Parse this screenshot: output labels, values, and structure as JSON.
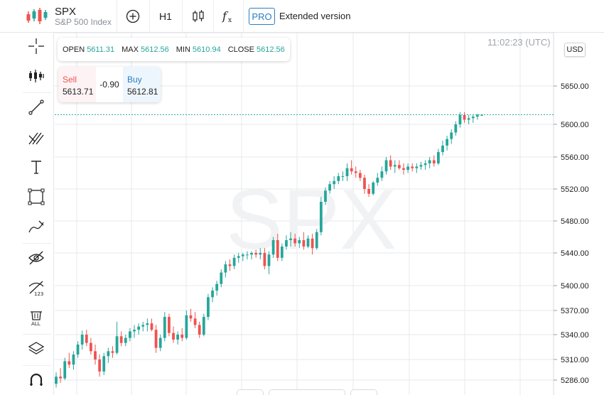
{
  "header": {
    "symbol": "SPX",
    "description": "S&P 500 Index",
    "timeframe": "H1",
    "pro_badge": "PRO",
    "extended_label": "Extended version"
  },
  "ohlc": {
    "open_label": "OPEN",
    "open_value": "5611.31",
    "max_label": "MAX",
    "max_value": "5612.56",
    "min_label": "MIN",
    "min_value": "5610.94",
    "close_label": "CLOSE",
    "close_value": "5612.56"
  },
  "trade": {
    "sell_label": "Sell",
    "sell_price": "5613.71",
    "spread": "-0.90",
    "buy_label": "Buy",
    "buy_price": "5612.81"
  },
  "clock": "11:02:23 (UTC)",
  "currency": "USD",
  "watermark": "SPX",
  "left_tools": [
    "crosshair-icon",
    "indicators-icon",
    "trendline-icon",
    "fib-icon",
    "text-icon",
    "rectangle-icon",
    "brush-icon",
    "hide-drawings-icon",
    "hide-values-icon",
    "delete-all-icon",
    "layers-icon",
    "magnet-icon"
  ],
  "colors": {
    "up": "#26a69a",
    "down": "#ef5350",
    "accent": "#2a7ec4",
    "grid": "#e6e8eb"
  },
  "chart_data": {
    "type": "candlestick",
    "y_tick_labels": [
      "5650.00",
      "5600.00",
      "5560.00",
      "5520.00",
      "5480.00",
      "5440.00",
      "5400.00",
      "5370.00",
      "5340.00",
      "5310.00",
      "5286.00"
    ],
    "grid": true,
    "current_price": 5612.56,
    "candles": [
      [
        5282,
        5295,
        5278,
        5290
      ],
      [
        5290,
        5300,
        5283,
        5288
      ],
      [
        5288,
        5312,
        5286,
        5308
      ],
      [
        5308,
        5318,
        5300,
        5304
      ],
      [
        5304,
        5320,
        5298,
        5316
      ],
      [
        5316,
        5332,
        5312,
        5328
      ],
      [
        5328,
        5345,
        5322,
        5340
      ],
      [
        5340,
        5346,
        5326,
        5330
      ],
      [
        5330,
        5336,
        5316,
        5320
      ],
      [
        5320,
        5328,
        5304,
        5310
      ],
      [
        5310,
        5316,
        5290,
        5296
      ],
      [
        5296,
        5318,
        5292,
        5314
      ],
      [
        5314,
        5324,
        5306,
        5320
      ],
      [
        5320,
        5326,
        5312,
        5318
      ],
      [
        5318,
        5356,
        5316,
        5338
      ],
      [
        5338,
        5344,
        5326,
        5330
      ],
      [
        5330,
        5340,
        5326,
        5336
      ],
      [
        5336,
        5348,
        5332,
        5344
      ],
      [
        5344,
        5352,
        5336,
        5346
      ],
      [
        5346,
        5354,
        5340,
        5350
      ],
      [
        5350,
        5356,
        5344,
        5352
      ],
      [
        5352,
        5360,
        5344,
        5354
      ],
      [
        5354,
        5360,
        5344,
        5346
      ],
      [
        5346,
        5352,
        5318,
        5324
      ],
      [
        5324,
        5340,
        5320,
        5336
      ],
      [
        5336,
        5368,
        5332,
        5362
      ],
      [
        5362,
        5366,
        5338,
        5342
      ],
      [
        5342,
        5350,
        5330,
        5334
      ],
      [
        5334,
        5344,
        5328,
        5340
      ],
      [
        5340,
        5348,
        5332,
        5336
      ],
      [
        5336,
        5370,
        5334,
        5364
      ],
      [
        5364,
        5372,
        5356,
        5360
      ],
      [
        5360,
        5368,
        5348,
        5352
      ],
      [
        5352,
        5356,
        5336,
        5340
      ],
      [
        5340,
        5366,
        5338,
        5362
      ],
      [
        5362,
        5390,
        5358,
        5386
      ],
      [
        5386,
        5398,
        5380,
        5394
      ],
      [
        5394,
        5406,
        5388,
        5402
      ],
      [
        5402,
        5420,
        5398,
        5416
      ],
      [
        5416,
        5430,
        5410,
        5426
      ],
      [
        5426,
        5432,
        5418,
        5424
      ],
      [
        5424,
        5438,
        5420,
        5434
      ],
      [
        5434,
        5440,
        5428,
        5436
      ],
      [
        5436,
        5440,
        5430,
        5438
      ],
      [
        5438,
        5442,
        5432,
        5438
      ],
      [
        5438,
        5442,
        5432,
        5440
      ],
      [
        5440,
        5444,
        5434,
        5438
      ],
      [
        5438,
        5446,
        5432,
        5440
      ],
      [
        5440,
        5446,
        5420,
        5424
      ],
      [
        5424,
        5442,
        5414,
        5438
      ],
      [
        5438,
        5460,
        5434,
        5456
      ],
      [
        5456,
        5464,
        5430,
        5434
      ],
      [
        5434,
        5452,
        5430,
        5448
      ],
      [
        5448,
        5462,
        5444,
        5456
      ],
      [
        5456,
        5466,
        5448,
        5458
      ],
      [
        5458,
        5464,
        5448,
        5452
      ],
      [
        5452,
        5460,
        5446,
        5456
      ],
      [
        5456,
        5466,
        5444,
        5448
      ],
      [
        5448,
        5462,
        5446,
        5458
      ],
      [
        5458,
        5464,
        5438,
        5446
      ],
      [
        5446,
        5470,
        5444,
        5466
      ],
      [
        5466,
        5510,
        5462,
        5504
      ],
      [
        5504,
        5522,
        5500,
        5518
      ],
      [
        5518,
        5530,
        5514,
        5526
      ],
      [
        5526,
        5536,
        5520,
        5530
      ],
      [
        5530,
        5540,
        5526,
        5536
      ],
      [
        5536,
        5542,
        5530,
        5536
      ],
      [
        5536,
        5552,
        5530,
        5546
      ],
      [
        5546,
        5556,
        5538,
        5542
      ],
      [
        5542,
        5548,
        5534,
        5540
      ],
      [
        5540,
        5544,
        5530,
        5534
      ],
      [
        5534,
        5538,
        5514,
        5520
      ],
      [
        5520,
        5526,
        5510,
        5514
      ],
      [
        5514,
        5530,
        5512,
        5528
      ],
      [
        5528,
        5540,
        5524,
        5534
      ],
      [
        5534,
        5548,
        5530,
        5542
      ],
      [
        5542,
        5560,
        5538,
        5556
      ],
      [
        5556,
        5562,
        5544,
        5548
      ],
      [
        5548,
        5556,
        5540,
        5550
      ],
      [
        5550,
        5556,
        5544,
        5546
      ],
      [
        5546,
        5552,
        5538,
        5544
      ],
      [
        5544,
        5552,
        5540,
        5548
      ],
      [
        5548,
        5552,
        5542,
        5546
      ],
      [
        5546,
        5552,
        5540,
        5548
      ],
      [
        5548,
        5554,
        5544,
        5550
      ],
      [
        5550,
        5556,
        5544,
        5552
      ],
      [
        5552,
        5560,
        5546,
        5556
      ],
      [
        5556,
        5562,
        5548,
        5552
      ],
      [
        5552,
        5570,
        5550,
        5566
      ],
      [
        5566,
        5580,
        5562,
        5574
      ],
      [
        5574,
        5586,
        5568,
        5582
      ],
      [
        5582,
        5594,
        5576,
        5590
      ],
      [
        5590,
        5604,
        5586,
        5600
      ],
      [
        5600,
        5616,
        5596,
        5612
      ],
      [
        5612,
        5616,
        5602,
        5606
      ],
      [
        5606,
        5612,
        5600,
        5608
      ],
      [
        5608,
        5612,
        5602,
        5610
      ],
      [
        5610,
        5614,
        5606,
        5612
      ],
      [
        5611.31,
        5612.56,
        5610.94,
        5612.56
      ]
    ]
  }
}
